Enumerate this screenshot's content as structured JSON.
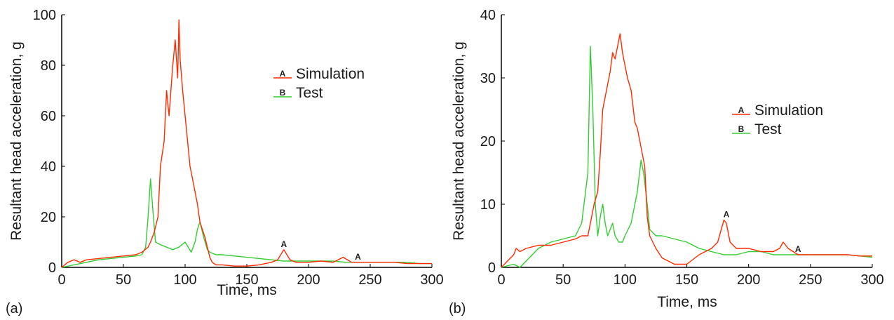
{
  "colors": {
    "simulation": "#ff2a00",
    "test": "#33cc33",
    "axis": "#000000"
  },
  "chart_data": [
    {
      "type": "line",
      "panel_label": "(a)",
      "xlabel": "Time, ms",
      "ylabel": "Resultant head acceleration, g",
      "xlim": [
        0,
        300
      ],
      "ylim": [
        0,
        100
      ],
      "xticks": [
        0,
        50,
        100,
        150,
        200,
        250,
        300
      ],
      "yticks": [
        0,
        20,
        40,
        60,
        80,
        100
      ],
      "legend": {
        "position": "top-right",
        "entries": [
          {
            "marker": "A",
            "label": "Simulation"
          },
          {
            "marker": "B",
            "label": "Test"
          }
        ]
      },
      "series": [
        {
          "name": "Simulation",
          "marker": "A",
          "color": "#ff2a00",
          "x": [
            0,
            5,
            10,
            15,
            20,
            30,
            40,
            50,
            60,
            65,
            70,
            72,
            75,
            78,
            80,
            83,
            85,
            87,
            90,
            92,
            94,
            95,
            96,
            98,
            100,
            102,
            104,
            106,
            108,
            110,
            112,
            114,
            116,
            118,
            120,
            122,
            125,
            130,
            140,
            150,
            160,
            165,
            170,
            175,
            180,
            185,
            190,
            195,
            200,
            210,
            220,
            228,
            235,
            240,
            250,
            260,
            270,
            280,
            290,
            300
          ],
          "y": [
            0,
            2,
            3,
            2,
            3,
            3.5,
            4,
            4.5,
            5,
            6,
            8,
            10,
            14,
            20,
            40,
            50,
            70,
            60,
            80,
            90,
            75,
            98,
            82,
            70,
            60,
            50,
            40,
            35,
            30,
            25,
            18,
            15,
            12,
            8,
            4,
            2,
            1,
            1,
            0.5,
            0.5,
            1,
            1.5,
            2,
            3,
            7,
            3,
            2,
            2,
            2,
            2.5,
            2,
            4,
            2,
            2,
            2,
            2,
            2,
            1.5,
            1.5,
            1.5
          ]
        },
        {
          "name": "Test",
          "marker": "B",
          "color": "#33cc33",
          "x": [
            0,
            10,
            20,
            30,
            40,
            50,
            60,
            65,
            68,
            70,
            72,
            74,
            76,
            80,
            85,
            90,
            95,
            100,
            105,
            108,
            110,
            112,
            115,
            118,
            120,
            125,
            130,
            140,
            150,
            160,
            170,
            180,
            190,
            200,
            210,
            220,
            230,
            240,
            250,
            260,
            270,
            280,
            290,
            300
          ],
          "y": [
            0,
            1,
            2,
            3,
            3.5,
            4,
            4.5,
            5,
            8,
            20,
            35,
            22,
            10,
            9,
            8,
            7,
            8,
            10,
            6,
            10,
            15,
            18,
            12,
            7,
            6,
            5,
            5,
            4.5,
            4,
            3.5,
            3,
            2.5,
            2.5,
            2.5,
            2.5,
            2.5,
            2,
            2,
            2,
            2,
            2,
            2,
            1.5,
            1.5
          ]
        }
      ],
      "annotations": [
        {
          "text": "A",
          "x": 180,
          "y": 7
        },
        {
          "text": "A",
          "x": 240,
          "y": 2
        }
      ]
    },
    {
      "type": "line",
      "panel_label": "(b)",
      "xlabel": "Time, ms",
      "ylabel": "Resultant head acceleration, g",
      "xlim": [
        0,
        300
      ],
      "ylim": [
        0,
        40
      ],
      "xticks": [
        0,
        50,
        100,
        150,
        200,
        250,
        300
      ],
      "yticks": [
        0,
        10,
        20,
        30,
        40
      ],
      "legend": {
        "position": "right",
        "entries": [
          {
            "marker": "A",
            "label": "Simulation"
          },
          {
            "marker": "B",
            "label": "Test"
          }
        ]
      },
      "series": [
        {
          "name": "Simulation",
          "marker": "A",
          "color": "#ff2a00",
          "x": [
            0,
            5,
            10,
            12,
            15,
            20,
            30,
            40,
            50,
            60,
            65,
            70,
            72,
            75,
            78,
            80,
            82,
            85,
            88,
            90,
            92,
            94,
            96,
            98,
            100,
            102,
            105,
            108,
            110,
            112,
            114,
            116,
            118,
            120,
            125,
            130,
            135,
            140,
            150,
            160,
            170,
            175,
            180,
            182,
            185,
            190,
            200,
            210,
            220,
            225,
            228,
            232,
            240,
            250,
            260,
            270,
            280,
            290,
            300
          ],
          "y": [
            0,
            1,
            2,
            3,
            2.5,
            3,
            3.5,
            3.5,
            4,
            4.5,
            5,
            5,
            7,
            10,
            12,
            18,
            25,
            28,
            31,
            34,
            33,
            35,
            37,
            34,
            32,
            30,
            28,
            23,
            22,
            20,
            18,
            16,
            8,
            5,
            3,
            1.5,
            1,
            0.5,
            0.5,
            2,
            3,
            4,
            7.5,
            7,
            4,
            3,
            3,
            2.5,
            2.5,
            3,
            4,
            3,
            2,
            2,
            2,
            2,
            2,
            1.8,
            1.8
          ]
        },
        {
          "name": "Test",
          "marker": "B",
          "color": "#33cc33",
          "x": [
            0,
            10,
            15,
            20,
            30,
            40,
            50,
            60,
            65,
            70,
            72,
            74,
            76,
            78,
            80,
            82,
            84,
            86,
            88,
            90,
            92,
            95,
            98,
            100,
            105,
            110,
            113,
            115,
            118,
            120,
            125,
            130,
            140,
            150,
            160,
            170,
            180,
            190,
            200,
            210,
            220,
            230,
            240,
            250,
            260,
            270,
            280,
            290,
            300
          ],
          "y": [
            0,
            0.5,
            0,
            1,
            3,
            4,
            4.5,
            5,
            7,
            15,
            35,
            25,
            10,
            5,
            8,
            10,
            7,
            5,
            6,
            7,
            5,
            4,
            4,
            5,
            7,
            12,
            17,
            15,
            10,
            6,
            5,
            5,
            4.5,
            4,
            3,
            2.5,
            2,
            2,
            2.5,
            2.5,
            2,
            2,
            2,
            2,
            2,
            2,
            2,
            1.8,
            1.6
          ]
        }
      ],
      "annotations": [
        {
          "text": "A",
          "x": 182,
          "y": 7.5
        },
        {
          "text": "A",
          "x": 240,
          "y": 2
        }
      ]
    }
  ]
}
